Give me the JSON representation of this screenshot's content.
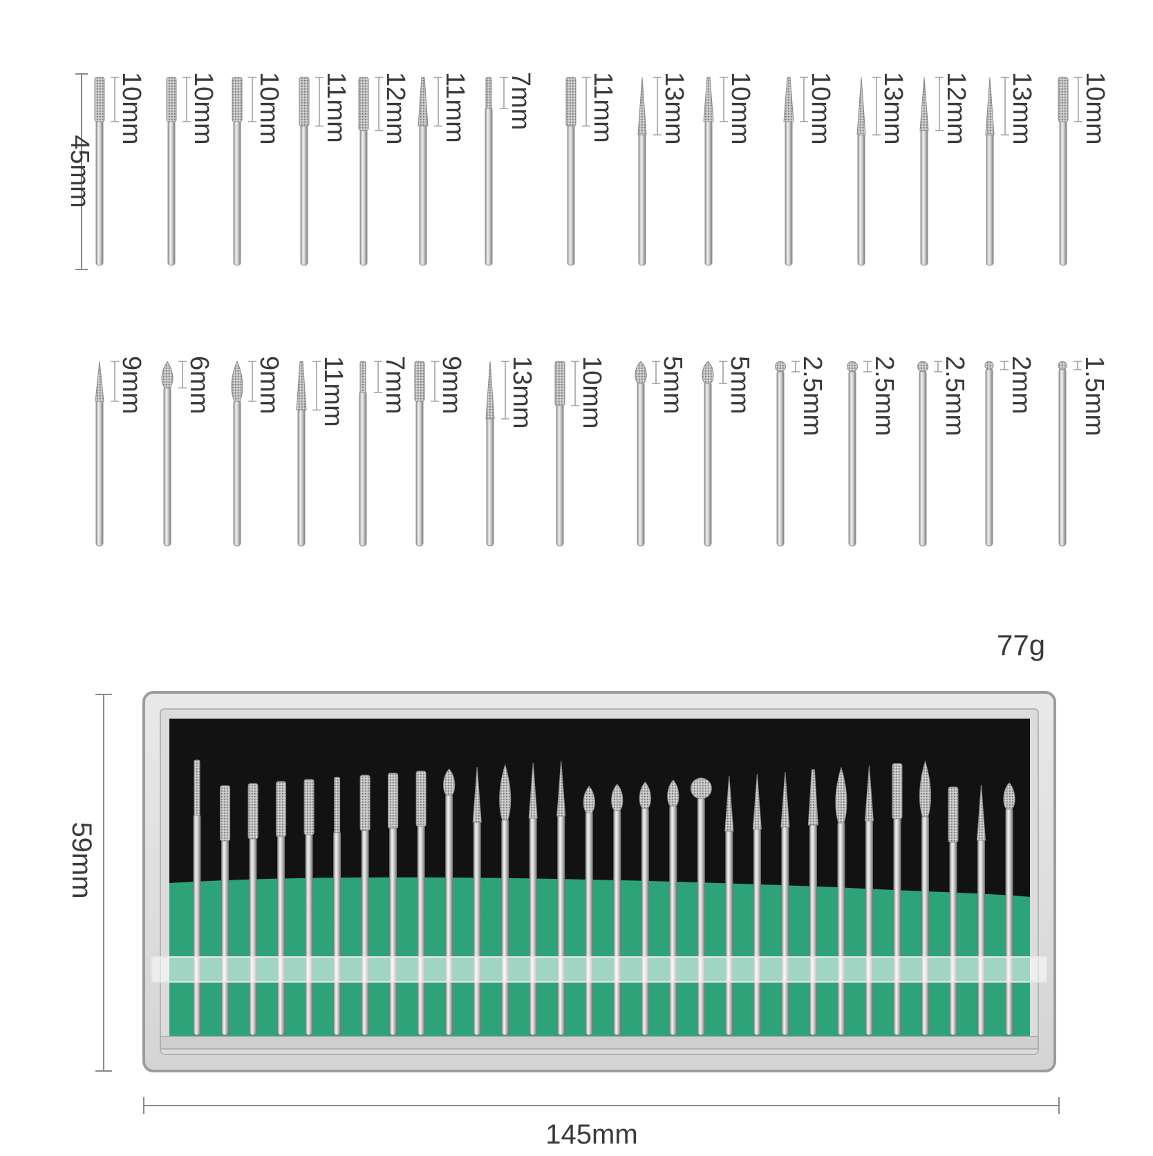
{
  "overall_length_label": "45mm",
  "row1": [
    {
      "label": "10mm",
      "shape": "cyl"
    },
    {
      "label": "10mm",
      "shape": "cyl"
    },
    {
      "label": "10mm",
      "shape": "cyl"
    },
    {
      "label": "11mm",
      "shape": "cyl"
    },
    {
      "label": "12mm",
      "shape": "cyl"
    },
    {
      "label": "11mm",
      "shape": "taper"
    },
    {
      "label": "7mm",
      "shape": "thin"
    },
    {
      "label": "11mm",
      "shape": "cyl"
    },
    {
      "label": "13mm",
      "shape": "needle"
    },
    {
      "label": "10mm",
      "shape": "taper"
    },
    {
      "label": "10mm",
      "shape": "taper"
    },
    {
      "label": "13mm",
      "shape": "needle"
    },
    {
      "label": "12mm",
      "shape": "needle"
    },
    {
      "label": "13mm",
      "shape": "needle"
    },
    {
      "label": "10mm",
      "shape": "cyl"
    }
  ],
  "row2": [
    {
      "label": "9mm",
      "shape": "needle"
    },
    {
      "label": "6mm",
      "shape": "flame"
    },
    {
      "label": "9mm",
      "shape": "flame"
    },
    {
      "label": "11mm",
      "shape": "taper"
    },
    {
      "label": "7mm",
      "shape": "thin"
    },
    {
      "label": "9mm",
      "shape": "cyl"
    },
    {
      "label": "13mm",
      "shape": "needle"
    },
    {
      "label": "10mm",
      "shape": "cyl"
    },
    {
      "label": "5mm",
      "shape": "bud"
    },
    {
      "label": "5mm",
      "shape": "bud"
    },
    {
      "label": "2.5mm",
      "shape": "ball"
    },
    {
      "label": "2.5mm",
      "shape": "ball"
    },
    {
      "label": "2.5mm",
      "shape": "ball"
    },
    {
      "label": "2mm",
      "shape": "ball"
    },
    {
      "label": "1.5mm",
      "shape": "ball"
    }
  ],
  "weight_label": "77g",
  "case_height_label": "59mm",
  "case_width_label": "145mm",
  "colors": {
    "case_foam": "#2ea37a",
    "case_backing": "#121212",
    "metal": "#c9c9c9"
  }
}
